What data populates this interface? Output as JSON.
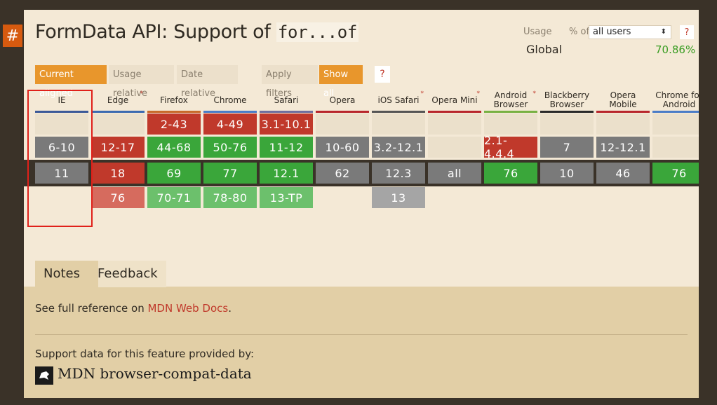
{
  "anchor": {
    "symbol": "#"
  },
  "title": {
    "prefix": "FormData API: Support of ",
    "code": "for...of"
  },
  "usage": {
    "label": "Usage",
    "pct_of": "% of",
    "selected": "all users",
    "help": "?",
    "global_label": "Global",
    "global_value": "70.86%"
  },
  "filters": {
    "current_aligned": "Current aligned",
    "usage_relative": "Usage relative",
    "date_relative": "Date relative",
    "apply_filters": "Apply filters",
    "show_all": "Show all",
    "help": "?"
  },
  "colors": {
    "supported": "#3aa63a",
    "unsupported": "#c0392b",
    "unknown": "#7a7a7a",
    "accent": "#e8962c",
    "highlight": "#e0211a"
  },
  "browsers": [
    {
      "name": "IE",
      "bar": "#3b5998",
      "star": false,
      "cells": [
        "",
        "6-10",
        "11",
        ""
      ],
      "types": [
        "empty",
        "gray",
        "gray",
        "none"
      ]
    },
    {
      "name": "Edge",
      "bar": "#3b6ab0",
      "star": true,
      "cells": [
        "",
        "12-17",
        "18",
        "76"
      ],
      "types": [
        "empty",
        "red",
        "red",
        "lred"
      ]
    },
    {
      "name": "Firefox",
      "bar": "#c86a2a",
      "star": false,
      "cells": [
        "2-43",
        "44-68",
        "69",
        "70-71"
      ],
      "types": [
        "red",
        "green",
        "green",
        "lgreen"
      ]
    },
    {
      "name": "Chrome",
      "bar": "#4a7cc7",
      "star": false,
      "cells": [
        "4-49",
        "50-76",
        "77",
        "78-80"
      ],
      "types": [
        "red",
        "green",
        "green",
        "lgreen"
      ]
    },
    {
      "name": "Safari",
      "bar": "#6f6f9e",
      "star": false,
      "cells": [
        "3.1-10.1",
        "11-12",
        "12.1",
        "13-TP"
      ],
      "types": [
        "red",
        "green",
        "green",
        "lgreen"
      ]
    },
    {
      "name": "Opera",
      "bar": "#b8262c",
      "star": false,
      "cells": [
        "",
        "10-60",
        "62",
        ""
      ],
      "types": [
        "empty",
        "gray",
        "gray",
        "none"
      ]
    },
    {
      "name": "iOS Safari",
      "bar": "#555555",
      "star": true,
      "cells": [
        "",
        "3.2-12.1",
        "12.3",
        "13"
      ],
      "types": [
        "empty",
        "gray",
        "gray",
        "lgray"
      ]
    },
    {
      "name": "Opera Mini",
      "bar": "#b8262c",
      "star": true,
      "cells": [
        "",
        "",
        "all",
        ""
      ],
      "types": [
        "empty",
        "empty",
        "gray",
        "none"
      ]
    },
    {
      "name": "Android Browser",
      "bar": "#78b143",
      "star": true,
      "cells": [
        "",
        "2.1-4.4.4",
        "76",
        ""
      ],
      "types": [
        "empty",
        "red",
        "green",
        "none"
      ]
    },
    {
      "name": "Blackberry Browser",
      "bar": "#2a2a2a",
      "star": false,
      "cells": [
        "",
        "7",
        "10",
        ""
      ],
      "types": [
        "empty",
        "gray",
        "gray",
        "none"
      ]
    },
    {
      "name": "Opera Mobile",
      "bar": "#b8262c",
      "star": false,
      "cells": [
        "",
        "12-12.1",
        "46",
        ""
      ],
      "types": [
        "empty",
        "gray",
        "gray",
        "none"
      ]
    },
    {
      "name": "Chrome for Android",
      "bar": "#4a7cc7",
      "star": false,
      "cells": [
        "",
        "",
        "76",
        ""
      ],
      "types": [
        "empty",
        "empty",
        "green",
        "none"
      ]
    }
  ],
  "tabs": {
    "notes": "Notes",
    "feedback": "Feedback"
  },
  "notes": {
    "see_full": "See full reference on ",
    "mdn_link": "MDN Web Docs",
    "period": ".",
    "support_by": "Support data for this feature provided by:",
    "mdn_name": "MDN browser-compat-data"
  }
}
